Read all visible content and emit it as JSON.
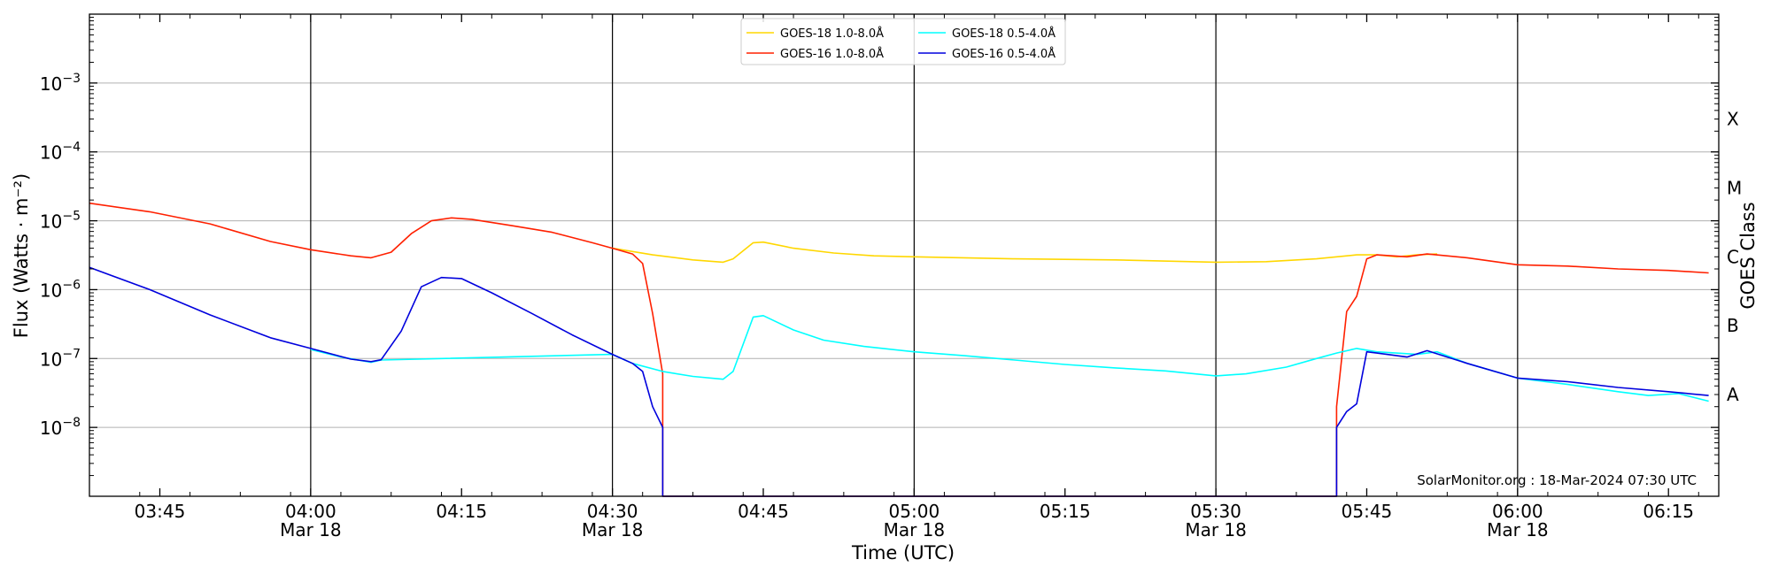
{
  "chart_data": {
    "type": "line",
    "xlabel": "Time (UTC)",
    "ylabel": "Flux (Watts · m⁻²)",
    "ylabel_right": "GOES Class",
    "credit": "SolarMonitor.org : 18-Mar-2024 07:30 UTC",
    "x_range": [
      "03:38",
      "06:20"
    ],
    "y_scale": "log",
    "y_range": [
      1e-09,
      0.01
    ],
    "grid": "horizontal",
    "legend_placement": "top-center",
    "y_ticks": [
      {
        "value": 1e-08,
        "base": "10",
        "exp": "−8"
      },
      {
        "value": 1e-07,
        "base": "10",
        "exp": "−7"
      },
      {
        "value": 1e-06,
        "base": "10",
        "exp": "−6"
      },
      {
        "value": 1e-05,
        "base": "10",
        "exp": "−5"
      },
      {
        "value": 0.0001,
        "base": "10",
        "exp": "−4"
      },
      {
        "value": 0.001,
        "base": "10",
        "exp": "−3"
      }
    ],
    "goes_classes": [
      {
        "label": "A",
        "value": 3e-08
      },
      {
        "label": "B",
        "value": 3e-07
      },
      {
        "label": "C",
        "value": 3e-06
      },
      {
        "label": "M",
        "value": 3e-05
      },
      {
        "label": "X",
        "value": 0.0003
      }
    ],
    "x_ticks": [
      {
        "time": "03:45",
        "label": "03:45",
        "date": ""
      },
      {
        "time": "04:00",
        "label": "04:00",
        "date": "Mar 18"
      },
      {
        "time": "04:15",
        "label": "04:15",
        "date": ""
      },
      {
        "time": "04:30",
        "label": "04:30",
        "date": "Mar 18"
      },
      {
        "time": "04:45",
        "label": "04:45",
        "date": ""
      },
      {
        "time": "05:00",
        "label": "05:00",
        "date": "Mar 18"
      },
      {
        "time": "05:15",
        "label": "05:15",
        "date": ""
      },
      {
        "time": "05:30",
        "label": "05:30",
        "date": "Mar 18"
      },
      {
        "time": "05:45",
        "label": "05:45",
        "date": ""
      },
      {
        "time": "06:00",
        "label": "06:00",
        "date": "Mar 18"
      },
      {
        "time": "06:15",
        "label": "06:15",
        "date": ""
      }
    ],
    "day_lines": [
      "04:00",
      "04:30",
      "05:00",
      "05:30",
      "06:00"
    ],
    "series": [
      {
        "name": "GOES-18 1.0-8.0Å",
        "color": "#ffd700",
        "points": [
          [
            "04:30",
            4e-06
          ],
          [
            "04:34",
            3.2e-06
          ],
          [
            "04:38",
            2.7e-06
          ],
          [
            "04:41",
            2.5e-06
          ],
          [
            "04:42",
            2.8e-06
          ],
          [
            "04:44",
            4.8e-06
          ],
          [
            "04:45",
            4.9e-06
          ],
          [
            "04:48",
            4e-06
          ],
          [
            "04:52",
            3.4e-06
          ],
          [
            "04:56",
            3.1e-06
          ],
          [
            "05:00",
            3e-06
          ],
          [
            "05:10",
            2.8e-06
          ],
          [
            "05:20",
            2.7e-06
          ],
          [
            "05:30",
            2.5e-06
          ],
          [
            "05:35",
            2.55e-06
          ],
          [
            "05:40",
            2.8e-06
          ],
          [
            "05:44",
            3.2e-06
          ],
          [
            "05:46",
            3.2e-06
          ],
          [
            "05:48",
            3e-06
          ],
          [
            "05:50",
            3.2e-06
          ],
          [
            "05:52",
            3.3e-06
          ]
        ]
      },
      {
        "name": "GOES-16 1.0-8.0Å",
        "color": "#ff2000",
        "points": [
          [
            "03:38",
            1.8e-05
          ],
          [
            "03:44",
            1.35e-05
          ],
          [
            "03:50",
            9e-06
          ],
          [
            "03:56",
            5e-06
          ],
          [
            "04:00",
            3.8e-06
          ],
          [
            "04:04",
            3.1e-06
          ],
          [
            "04:06",
            2.9e-06
          ],
          [
            "04:08",
            3.5e-06
          ],
          [
            "04:10",
            6.5e-06
          ],
          [
            "04:12",
            1e-05
          ],
          [
            "04:14",
            1.1e-05
          ],
          [
            "04:16",
            1.05e-05
          ],
          [
            "04:20",
            8.5e-06
          ],
          [
            "04:24",
            6.8e-06
          ],
          [
            "04:28",
            4.8e-06
          ],
          [
            "04:30",
            4e-06
          ],
          [
            "04:32",
            3.3e-06
          ],
          [
            "04:33",
            2.4e-06
          ],
          [
            "04:34",
            4.5e-07
          ],
          [
            "04:35",
            6e-08
          ],
          [
            "04:35",
            1e-09
          ],
          [
            "05:42",
            1e-09
          ],
          [
            "05:42",
            2e-08
          ],
          [
            "05:43",
            4.8e-07
          ],
          [
            "05:44",
            8e-07
          ],
          [
            "05:45",
            2.8e-06
          ],
          [
            "05:46",
            3.2e-06
          ],
          [
            "05:49",
            3e-06
          ],
          [
            "05:51",
            3.3e-06
          ],
          [
            "05:55",
            2.9e-06
          ],
          [
            "06:00",
            2.3e-06
          ],
          [
            "06:05",
            2.2e-06
          ],
          [
            "06:10",
            2e-06
          ],
          [
            "06:15",
            1.9e-06
          ],
          [
            "06:19",
            1.75e-06
          ]
        ]
      },
      {
        "name": "GOES-18 0.5-4.0Å",
        "color": "#00ffff",
        "points": [
          [
            "04:00",
            1.35e-07
          ],
          [
            "04:03",
            1.05e-07
          ],
          [
            "04:06",
            8.8e-08
          ],
          [
            "04:07",
            9.5e-08
          ],
          [
            "04:30",
            1.15e-07
          ],
          [
            "04:32",
            8.5e-08
          ],
          [
            "04:35",
            6.5e-08
          ],
          [
            "04:38",
            5.5e-08
          ],
          [
            "04:41",
            5e-08
          ],
          [
            "04:42",
            6.5e-08
          ],
          [
            "04:44",
            4e-07
          ],
          [
            "04:45",
            4.2e-07
          ],
          [
            "04:48",
            2.6e-07
          ],
          [
            "04:51",
            1.85e-07
          ],
          [
            "04:55",
            1.5e-07
          ],
          [
            "05:00",
            1.25e-07
          ],
          [
            "05:05",
            1.1e-07
          ],
          [
            "05:10",
            9.5e-08
          ],
          [
            "05:15",
            8.2e-08
          ],
          [
            "05:20",
            7.3e-08
          ],
          [
            "05:25",
            6.6e-08
          ],
          [
            "05:30",
            5.6e-08
          ],
          [
            "05:33",
            6e-08
          ],
          [
            "05:37",
            7.5e-08
          ],
          [
            "05:40",
            1e-07
          ],
          [
            "05:42",
            1.2e-07
          ],
          [
            "05:44",
            1.4e-07
          ],
          [
            "05:46",
            1.25e-07
          ],
          [
            "05:50",
            1.15e-07
          ],
          [
            "05:52",
            1.25e-07
          ],
          [
            "05:55",
            8.5e-08
          ],
          [
            "06:00",
            5.2e-08
          ],
          [
            "06:05",
            4.2e-08
          ],
          [
            "06:10",
            3.3e-08
          ],
          [
            "06:13",
            2.9e-08
          ],
          [
            "06:16",
            3.1e-08
          ],
          [
            "06:19",
            2.4e-08
          ]
        ]
      },
      {
        "name": "GOES-16 0.5-4.0Å",
        "color": "#0000dd",
        "points": [
          [
            "03:38",
            2.1e-06
          ],
          [
            "03:44",
            1e-06
          ],
          [
            "03:50",
            4.3e-07
          ],
          [
            "03:56",
            2e-07
          ],
          [
            "04:00",
            1.4e-07
          ],
          [
            "04:04",
            9.8e-08
          ],
          [
            "04:06",
            9e-08
          ],
          [
            "04:07",
            9.6e-08
          ],
          [
            "04:09",
            2.5e-07
          ],
          [
            "04:11",
            1.1e-06
          ],
          [
            "04:13",
            1.5e-06
          ],
          [
            "04:15",
            1.45e-06
          ],
          [
            "04:18",
            9e-07
          ],
          [
            "04:22",
            4.5e-07
          ],
          [
            "04:26",
            2.2e-07
          ],
          [
            "04:30",
            1.15e-07
          ],
          [
            "04:32",
            8.5e-08
          ],
          [
            "04:33",
            6.5e-08
          ],
          [
            "04:34",
            2e-08
          ],
          [
            "04:35",
            1e-08
          ],
          [
            "04:35",
            1e-09
          ],
          [
            "05:42",
            1e-09
          ],
          [
            "05:42",
            1e-08
          ],
          [
            "05:43",
            1.7e-08
          ],
          [
            "05:44",
            2.2e-08
          ],
          [
            "05:45",
            1.25e-07
          ],
          [
            "05:46",
            1.2e-07
          ],
          [
            "05:49",
            1.05e-07
          ],
          [
            "05:51",
            1.3e-07
          ],
          [
            "05:55",
            8.5e-08
          ],
          [
            "06:00",
            5.2e-08
          ],
          [
            "06:05",
            4.6e-08
          ],
          [
            "06:10",
            3.8e-08
          ],
          [
            "06:15",
            3.3e-08
          ],
          [
            "06:19",
            2.9e-08
          ]
        ]
      }
    ]
  }
}
